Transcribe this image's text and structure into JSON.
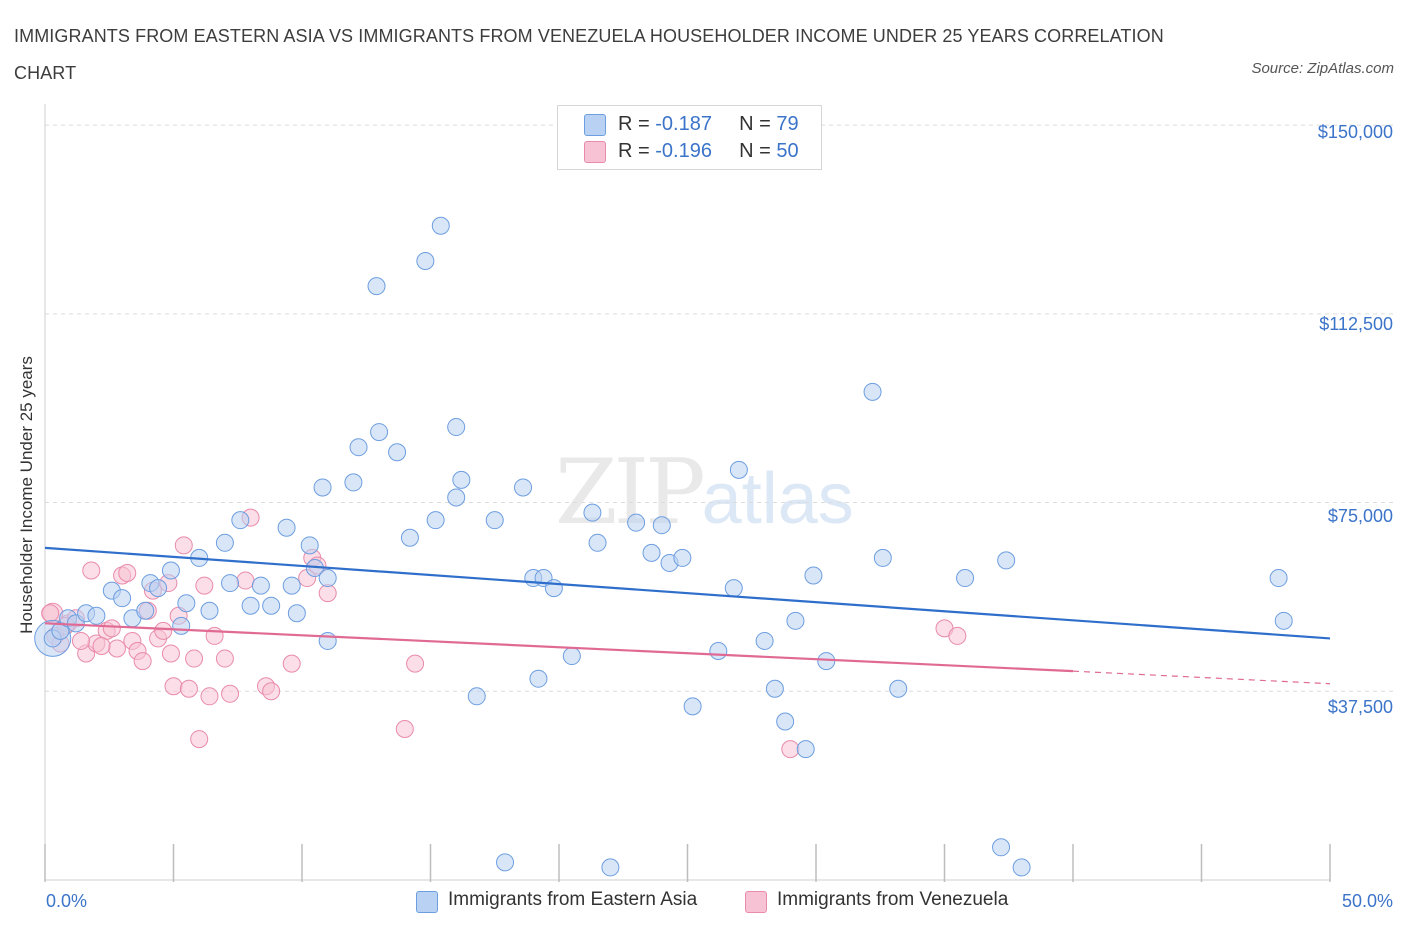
{
  "title": "IMMIGRANTS FROM EASTERN ASIA VS IMMIGRANTS FROM VENEZUELA HOUSEHOLDER INCOME UNDER 25 YEARS CORRELATION CHART",
  "source": "Source: ZipAtlas.com",
  "watermark": {
    "zip": "ZIP",
    "atlas": "atlas"
  },
  "legend": {
    "row1": {
      "r_label": "R = ",
      "r_value": "-0.187",
      "n_label": "N = ",
      "n_value": "79"
    },
    "row2": {
      "r_label": "R = ",
      "r_value": "-0.196",
      "n_label": "N = ",
      "n_value": "50"
    }
  },
  "bottom_legend": {
    "series1": "Immigrants from Eastern Asia",
    "series2": "Immigrants from Venezuela"
  },
  "colors": {
    "blue_fill": "#b9d2f3",
    "blue_stroke": "#6d9ee0",
    "blue_line": "#2f6fcb",
    "pink_fill": "#f7c3d4",
    "pink_stroke": "#e98bab",
    "pink_line": "#e06a93",
    "tick_text": "#3b74c9",
    "grid": "#dcdcdc"
  },
  "chart_data": {
    "type": "scatter",
    "title": "IMMIGRANTS FROM EASTERN ASIA VS IMMIGRANTS FROM VENEZUELA HOUSEHOLDER INCOME UNDER 25 YEARS CORRELATION CHART",
    "xlabel": "",
    "ylabel": "Householder Income Under 25 years",
    "xlim": [
      0,
      50
    ],
    "ylim": [
      0,
      153000
    ],
    "x_tick_labels": [
      "0.0%",
      "50.0%"
    ],
    "y_ticks": [
      37500,
      75000,
      112500,
      150000
    ],
    "y_tick_labels": [
      "$37,500",
      "$75,000",
      "$112,500",
      "$150,000"
    ],
    "grid": "horizontal dashed",
    "legend_position": "top-center",
    "series": [
      {
        "name": "Immigrants from Eastern Asia",
        "color": "#6d9ee0",
        "R": -0.187,
        "N": 79,
        "trend": {
          "x": [
            0,
            50
          ],
          "y": [
            66000,
            48000
          ]
        },
        "points": [
          [
            0.3,
            48000
          ],
          [
            0.6,
            49500
          ],
          [
            0.9,
            52000
          ],
          [
            1.2,
            51000
          ],
          [
            1.6,
            53000
          ],
          [
            2.0,
            52500
          ],
          [
            2.6,
            57500
          ],
          [
            3.0,
            56000
          ],
          [
            3.4,
            52000
          ],
          [
            3.9,
            53500
          ],
          [
            4.1,
            59000
          ],
          [
            4.4,
            58000
          ],
          [
            4.9,
            61500
          ],
          [
            5.3,
            50500
          ],
          [
            5.5,
            55000
          ],
          [
            6.0,
            64000
          ],
          [
            6.4,
            53500
          ],
          [
            7.0,
            67000
          ],
          [
            7.2,
            59000
          ],
          [
            7.6,
            71500
          ],
          [
            8.0,
            54500
          ],
          [
            8.4,
            58500
          ],
          [
            8.8,
            54500
          ],
          [
            9.4,
            70000
          ],
          [
            9.6,
            58500
          ],
          [
            9.8,
            53000
          ],
          [
            10.3,
            66500
          ],
          [
            10.5,
            62000
          ],
          [
            10.8,
            78000
          ],
          [
            11.0,
            60000
          ],
          [
            11.0,
            47500
          ],
          [
            12.0,
            79000
          ],
          [
            12.2,
            86000
          ],
          [
            12.9,
            118000
          ],
          [
            13.0,
            89000
          ],
          [
            13.7,
            85000
          ],
          [
            14.2,
            68000
          ],
          [
            14.8,
            123000
          ],
          [
            15.2,
            71500
          ],
          [
            15.4,
            130000
          ],
          [
            16.0,
            90000
          ],
          [
            16.0,
            76000
          ],
          [
            16.2,
            79500
          ],
          [
            16.8,
            36500
          ],
          [
            17.5,
            71500
          ],
          [
            17.9,
            3500
          ],
          [
            18.6,
            78000
          ],
          [
            19.0,
            60000
          ],
          [
            19.2,
            40000
          ],
          [
            19.4,
            60000
          ],
          [
            19.8,
            58000
          ],
          [
            20.5,
            44500
          ],
          [
            21.3,
            73000
          ],
          [
            21.5,
            67000
          ],
          [
            22.0,
            2500
          ],
          [
            23.0,
            71000
          ],
          [
            23.6,
            65000
          ],
          [
            24.0,
            70500
          ],
          [
            24.3,
            63000
          ],
          [
            24.8,
            64000
          ],
          [
            25.2,
            34500
          ],
          [
            26.2,
            45500
          ],
          [
            26.8,
            58000
          ],
          [
            27.0,
            81500
          ],
          [
            28.0,
            47500
          ],
          [
            28.4,
            38000
          ],
          [
            28.8,
            31500
          ],
          [
            29.2,
            51500
          ],
          [
            29.6,
            26000
          ],
          [
            29.9,
            60500
          ],
          [
            30.4,
            43500
          ],
          [
            32.2,
            97000
          ],
          [
            32.6,
            64000
          ],
          [
            33.2,
            38000
          ],
          [
            35.8,
            60000
          ],
          [
            37.4,
            63500
          ],
          [
            37.2,
            6500
          ],
          [
            38.0,
            2500
          ],
          [
            48.0,
            60000
          ],
          [
            48.2,
            51500
          ]
        ]
      },
      {
        "name": "Immigrants from Venezuela",
        "color": "#e98bab",
        "R": -0.196,
        "N": 50,
        "trend": {
          "x": [
            0,
            40,
            50
          ],
          "y": [
            51000,
            41500,
            39000
          ],
          "solid_until_x": 40
        },
        "points": [
          [
            0.2,
            53000
          ],
          [
            0.4,
            48500
          ],
          [
            0.6,
            47000
          ],
          [
            0.9,
            51000
          ],
          [
            1.2,
            52000
          ],
          [
            1.6,
            45000
          ],
          [
            1.8,
            61500
          ],
          [
            2.0,
            47000
          ],
          [
            2.4,
            49500
          ],
          [
            2.6,
            50000
          ],
          [
            2.8,
            46000
          ],
          [
            3.0,
            60500
          ],
          [
            3.2,
            61000
          ],
          [
            3.4,
            47500
          ],
          [
            3.6,
            45500
          ],
          [
            3.8,
            43500
          ],
          [
            4.0,
            53500
          ],
          [
            4.2,
            57500
          ],
          [
            4.4,
            48000
          ],
          [
            4.6,
            49500
          ],
          [
            4.8,
            59000
          ],
          [
            5.0,
            38500
          ],
          [
            5.2,
            52500
          ],
          [
            5.4,
            66500
          ],
          [
            5.6,
            38000
          ],
          [
            5.8,
            44000
          ],
          [
            6.0,
            28000
          ],
          [
            6.2,
            58500
          ],
          [
            6.4,
            36500
          ],
          [
            6.6,
            48500
          ],
          [
            7.0,
            44000
          ],
          [
            7.2,
            37000
          ],
          [
            7.8,
            59500
          ],
          [
            8.0,
            72000
          ],
          [
            8.6,
            38500
          ],
          [
            8.8,
            37500
          ],
          [
            9.6,
            43000
          ],
          [
            10.2,
            60000
          ],
          [
            10.4,
            64000
          ],
          [
            10.6,
            62500
          ],
          [
            11.0,
            57000
          ],
          [
            14.0,
            30000
          ],
          [
            14.4,
            43000
          ],
          [
            29.0,
            26000
          ],
          [
            35.0,
            50000
          ],
          [
            35.5,
            48500
          ],
          [
            0.8,
            50500
          ],
          [
            1.4,
            47500
          ],
          [
            2.2,
            46500
          ],
          [
            4.9,
            45000
          ]
        ]
      }
    ]
  }
}
